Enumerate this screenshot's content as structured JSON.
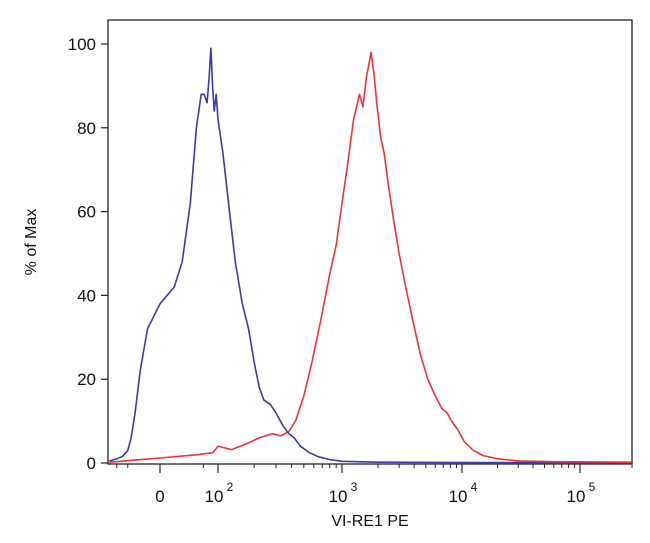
{
  "chart_data": {
    "type": "line",
    "title": "",
    "xlabel": "VI-RE1 PE",
    "ylabel": "% of Max",
    "x_scale": "biexponential",
    "ylim": [
      0,
      100
    ],
    "y_ticks": [
      {
        "value": 0,
        "label": "0"
      },
      {
        "value": 20,
        "label": "20"
      },
      {
        "value": 40,
        "label": "40"
      },
      {
        "value": 60,
        "label": "60"
      },
      {
        "value": 80,
        "label": "80"
      },
      {
        "value": 100,
        "label": "100"
      }
    ],
    "x_ticks": [
      {
        "value": 0,
        "label": "0",
        "sup": ""
      },
      {
        "value": 100,
        "label": "10",
        "sup": "2"
      },
      {
        "value": 1000,
        "label": "10",
        "sup": "3"
      },
      {
        "value": 10000,
        "label": "10",
        "sup": "4"
      },
      {
        "value": 100000,
        "label": "10",
        "sup": "5"
      }
    ],
    "grid": false,
    "legend": "none",
    "series": [
      {
        "color": "#3a3aa8",
        "points": [
          [
            -150,
            0.5
          ],
          [
            -100,
            1.0
          ],
          [
            -70,
            1.6
          ],
          [
            -50,
            3
          ],
          [
            -40,
            6
          ],
          [
            -30,
            12
          ],
          [
            -20,
            22
          ],
          [
            -10,
            32
          ],
          [
            0,
            38
          ],
          [
            8,
            42
          ],
          [
            15,
            48
          ],
          [
            25,
            62
          ],
          [
            35,
            80
          ],
          [
            45,
            88
          ],
          [
            52,
            88
          ],
          [
            60,
            86
          ],
          [
            66,
            92
          ],
          [
            72,
            99
          ],
          [
            78,
            90
          ],
          [
            84,
            84
          ],
          [
            92,
            88
          ],
          [
            100,
            82
          ],
          [
            110,
            74
          ],
          [
            125,
            60
          ],
          [
            140,
            48
          ],
          [
            160,
            38
          ],
          [
            180,
            32
          ],
          [
            200,
            24
          ],
          [
            220,
            18
          ],
          [
            240,
            15
          ],
          [
            270,
            14
          ],
          [
            300,
            12
          ],
          [
            340,
            9
          ],
          [
            380,
            7
          ],
          [
            420,
            6
          ],
          [
            470,
            4
          ],
          [
            550,
            2.5
          ],
          [
            650,
            1.5
          ],
          [
            800,
            0.8
          ],
          [
            1000,
            0.4
          ],
          [
            2000,
            0.2
          ],
          [
            10000,
            0.1
          ],
          [
            200000,
            0.1
          ]
        ]
      },
      {
        "color": "#e8343a",
        "points": [
          [
            -150,
            0.2
          ],
          [
            -60,
            0.5
          ],
          [
            0,
            1.2
          ],
          [
            40,
            2.0
          ],
          [
            80,
            2.5
          ],
          [
            100,
            4.0
          ],
          [
            130,
            3.2
          ],
          [
            170,
            4.5
          ],
          [
            220,
            6.0
          ],
          [
            280,
            7.0
          ],
          [
            330,
            6.5
          ],
          [
            380,
            7.5
          ],
          [
            430,
            10
          ],
          [
            500,
            16
          ],
          [
            580,
            24
          ],
          [
            680,
            34
          ],
          [
            800,
            45
          ],
          [
            900,
            52
          ],
          [
            1000,
            62
          ],
          [
            1100,
            70
          ],
          [
            1250,
            82
          ],
          [
            1400,
            88
          ],
          [
            1500,
            85
          ],
          [
            1600,
            92
          ],
          [
            1750,
            98
          ],
          [
            1850,
            93
          ],
          [
            1950,
            86
          ],
          [
            2100,
            78
          ],
          [
            2250,
            74
          ],
          [
            2450,
            66
          ],
          [
            2700,
            58
          ],
          [
            3000,
            50
          ],
          [
            3400,
            42
          ],
          [
            3900,
            34
          ],
          [
            4500,
            26
          ],
          [
            5200,
            20
          ],
          [
            6000,
            16
          ],
          [
            6800,
            13
          ],
          [
            7500,
            12
          ],
          [
            8200,
            10
          ],
          [
            9200,
            8
          ],
          [
            10500,
            5
          ],
          [
            12500,
            3
          ],
          [
            15000,
            1.8
          ],
          [
            20000,
            1.0
          ],
          [
            30000,
            0.5
          ],
          [
            60000,
            0.3
          ],
          [
            200000,
            0.2
          ]
        ]
      }
    ]
  }
}
